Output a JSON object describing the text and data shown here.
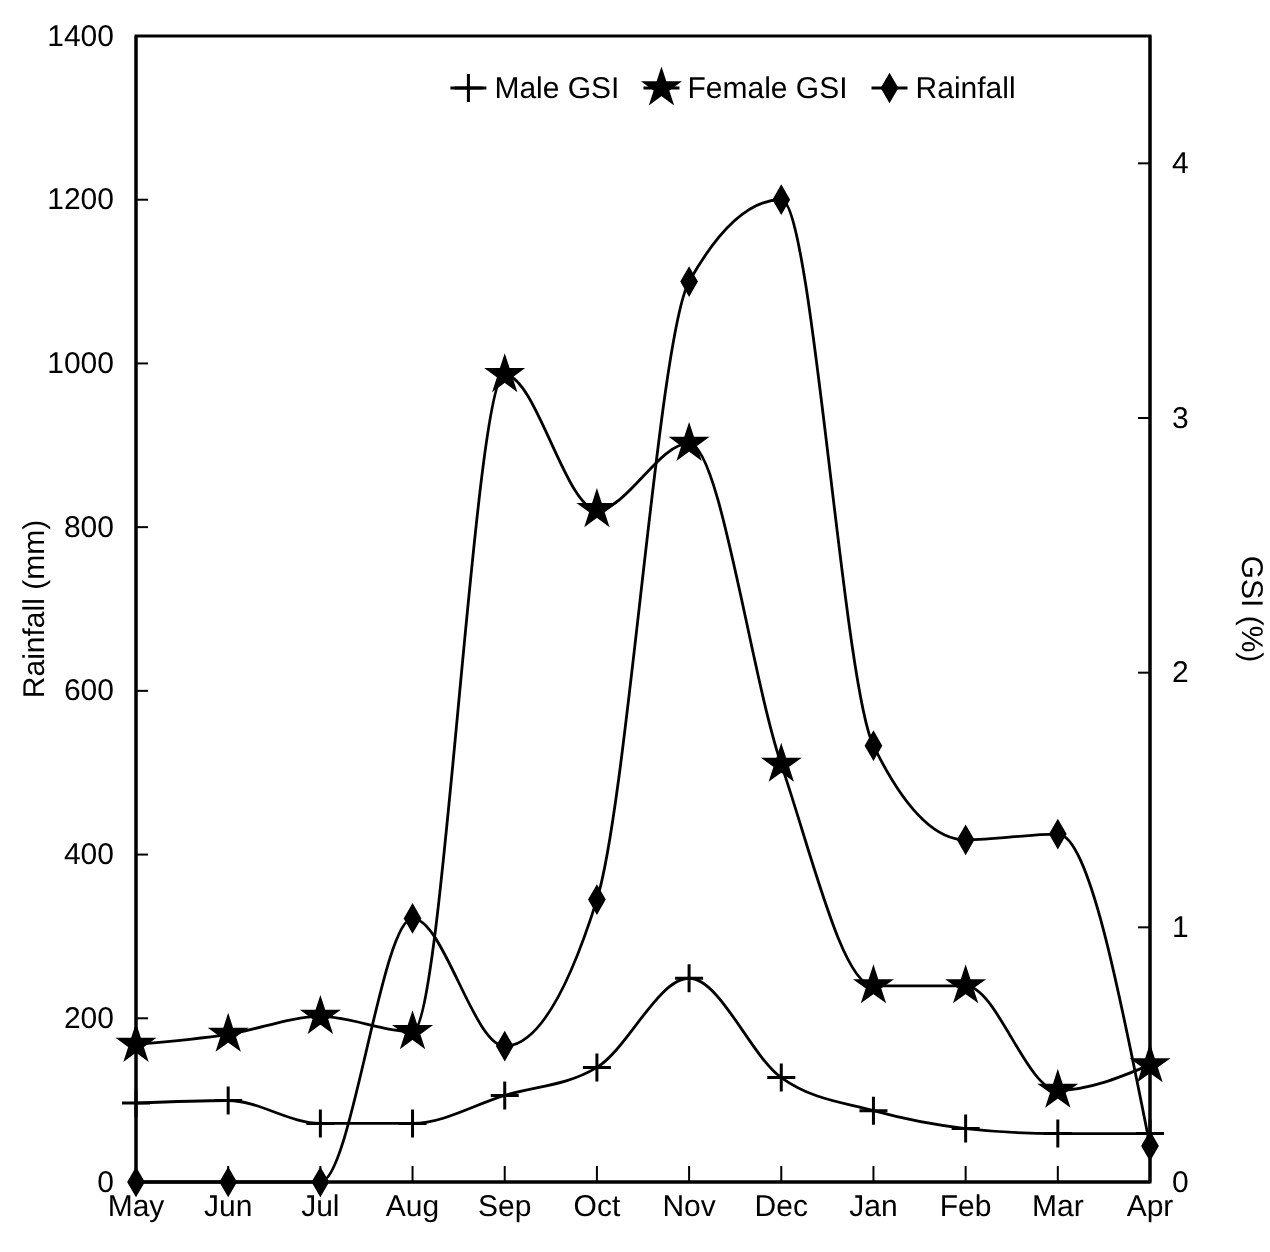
{
  "chart_data": {
    "type": "line",
    "xlabel": null,
    "ylabel": "Rainfall (mm)",
    "y2label": "GSI (%)",
    "categories": [
      "May",
      "Jun",
      "Jul",
      "Aug",
      "Sep",
      "Oct",
      "Nov",
      "Dec",
      "Jan",
      "Feb",
      "Mar",
      "Apr"
    ],
    "ylim": [
      0,
      1400
    ],
    "yticks": [
      0,
      200,
      400,
      600,
      800,
      1000,
      1200,
      1400
    ],
    "y2lim": [
      0,
      4.5
    ],
    "y2ticks": [
      0,
      1,
      2,
      3,
      4
    ],
    "legend": "top",
    "grid": false,
    "series": [
      {
        "name": "Male GSI",
        "color": "#000000",
        "axis": "y2",
        "marker": "cross",
        "values": [
          0.31,
          0.32,
          0.23,
          0.23,
          0.34,
          0.45,
          0.8,
          0.41,
          0.28,
          0.21,
          0.19,
          0.19
        ]
      },
      {
        "name": "Female GSI",
        "color": "#000000",
        "axis": "y2",
        "marker": "star",
        "values": [
          0.54,
          0.58,
          0.65,
          0.59,
          3.17,
          2.64,
          2.9,
          1.64,
          0.77,
          0.77,
          0.36,
          0.46
        ]
      },
      {
        "name": "Rainfall",
        "color": "#000000",
        "axis": "y",
        "marker": "diamond",
        "values": [
          0,
          0,
          0,
          322,
          166,
          345,
          1100,
          1200,
          533,
          418,
          425,
          44
        ]
      }
    ]
  }
}
